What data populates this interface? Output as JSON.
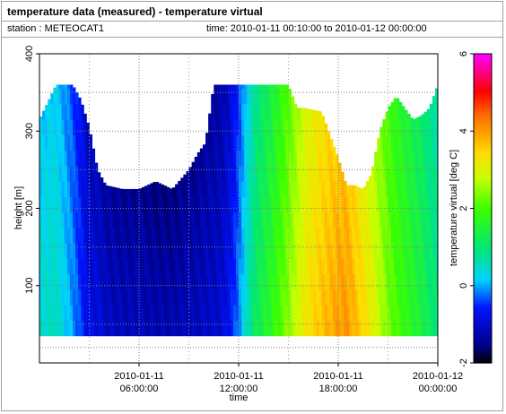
{
  "header": {
    "title": "temperature data (measured) - temperature virtual",
    "station": "station : METEOCAT1",
    "time_range": "time: 2010-01-11 00:10:00 to 2010-01-12 00:00:00"
  },
  "chart_data": {
    "type": "heatmap",
    "title": "temperature data (measured) - temperature virtual",
    "xlabel": "time",
    "ylabel": "height [m]",
    "colorbar_label": "temperature virtual [deg C]",
    "xlim_hours": [
      0,
      24
    ],
    "ylim": [
      0,
      400
    ],
    "clim": [
      -2,
      6
    ],
    "grid": true,
    "x_ticks": [
      {
        "hours": 6,
        "line1": "2010-01-11",
        "line2": "06:00:00"
      },
      {
        "hours": 12,
        "line1": "2010-01-11",
        "line2": "12:00:00"
      },
      {
        "hours": 18,
        "line1": "2010-01-11",
        "line2": "18:00:00"
      },
      {
        "hours": 24,
        "line1": "2010-01-12",
        "line2": "00:00:00"
      }
    ],
    "y_ticks": [
      100,
      200,
      300,
      400
    ],
    "colorbar_ticks": [
      -2,
      0,
      2,
      4,
      6
    ],
    "data_bottom_height": 35,
    "time_step_hours": 0.1667,
    "profiles": [
      {
        "t": 0.0,
        "top": 315,
        "temp": 0.3
      },
      {
        "t": 1.0,
        "top": 360,
        "temp": 0.4
      },
      {
        "t": 2.0,
        "top": 360,
        "temp": -0.2
      },
      {
        "t": 2.5,
        "top": 340,
        "temp": -0.6
      },
      {
        "t": 3.0,
        "top": 305,
        "temp": -1.0
      },
      {
        "t": 3.5,
        "top": 250,
        "temp": -1.0
      },
      {
        "t": 4.0,
        "top": 230,
        "temp": -1.2
      },
      {
        "t": 5.0,
        "top": 225,
        "temp": -1.3
      },
      {
        "t": 6.0,
        "top": 225,
        "temp": -1.3
      },
      {
        "t": 7.0,
        "top": 235,
        "temp": -1.4
      },
      {
        "t": 8.0,
        "top": 225,
        "temp": -1.4
      },
      {
        "t": 9.0,
        "top": 250,
        "temp": -1.3
      },
      {
        "t": 9.5,
        "top": 270,
        "temp": -1.3
      },
      {
        "t": 10.0,
        "top": 285,
        "temp": -1.2
      },
      {
        "t": 10.5,
        "top": 360,
        "temp": -1.2
      },
      {
        "t": 11.0,
        "top": 360,
        "temp": -1.1
      },
      {
        "t": 11.5,
        "top": 360,
        "temp": -0.8
      },
      {
        "t": 12.0,
        "top": 360,
        "temp": -0.3
      },
      {
        "t": 12.5,
        "top": 360,
        "temp": 0.4
      },
      {
        "t": 13.0,
        "top": 360,
        "temp": 1.0
      },
      {
        "t": 14.0,
        "top": 360,
        "temp": 1.6
      },
      {
        "t": 15.0,
        "top": 360,
        "temp": 2.3
      },
      {
        "t": 15.5,
        "top": 330,
        "temp": 2.7
      },
      {
        "t": 16.0,
        "top": 330,
        "temp": 3.1
      },
      {
        "t": 17.0,
        "top": 325,
        "temp": 3.5
      },
      {
        "t": 18.0,
        "top": 265,
        "temp": 3.8
      },
      {
        "t": 18.5,
        "top": 230,
        "temp": 3.9
      },
      {
        "t": 19.0,
        "top": 230,
        "temp": 3.6
      },
      {
        "t": 19.5,
        "top": 225,
        "temp": 3.3
      },
      {
        "t": 20.0,
        "top": 245,
        "temp": 3.0
      },
      {
        "t": 20.5,
        "top": 300,
        "temp": 2.6
      },
      {
        "t": 21.0,
        "top": 330,
        "temp": 2.2
      },
      {
        "t": 21.5,
        "top": 345,
        "temp": 1.9
      },
      {
        "t": 22.0,
        "top": 330,
        "temp": 1.7
      },
      {
        "t": 22.5,
        "top": 315,
        "temp": 1.5
      },
      {
        "t": 23.0,
        "top": 320,
        "temp": 1.3
      },
      {
        "t": 23.5,
        "top": 330,
        "temp": 1.0
      },
      {
        "t": 24.0,
        "top": 360,
        "temp": 0.8
      }
    ]
  }
}
